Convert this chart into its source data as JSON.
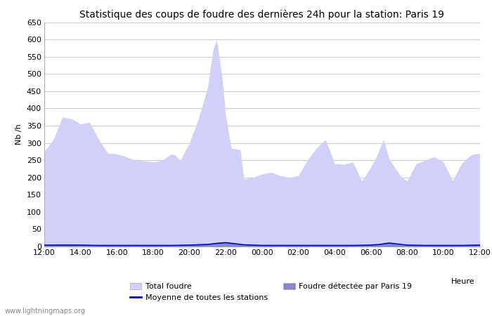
{
  "title": "Statistique des coups de foudre des dernières 24h pour la station: Paris 19",
  "ylabel": "Nb /h",
  "xlabel": "Heure",
  "watermark": "www.lightningmaps.org",
  "ylim": [
    0,
    650
  ],
  "yticks": [
    0,
    50,
    100,
    150,
    200,
    250,
    300,
    350,
    400,
    450,
    500,
    550,
    600,
    650
  ],
  "x_labels": [
    "12:00",
    "14:00",
    "16:00",
    "18:00",
    "20:00",
    "22:00",
    "00:00",
    "02:00",
    "04:00",
    "06:00",
    "08:00",
    "10:00",
    "12:00"
  ],
  "total_foudre_color": "#d0d0f8",
  "paris19_color": "#8888cc",
  "mean_line_color": "#0000cc",
  "background_color": "#ffffff",
  "grid_color": "#cccccc",
  "total_foudre_x": [
    0,
    0.5,
    1,
    1.5,
    2,
    2.5,
    3,
    3.5,
    4,
    4.5,
    5,
    5.5,
    6,
    6.5,
    7,
    7.2,
    7.5,
    8,
    8.5,
    9,
    9.3,
    9.5,
    9.8,
    10,
    10.3,
    10.8,
    11,
    11.5,
    12,
    12.5,
    13,
    13.5,
    14,
    14.5,
    15,
    15.5,
    16,
    16.5,
    17,
    17.5,
    18,
    18.3,
    18.7,
    19,
    19.3,
    19.7,
    20,
    20.5,
    21,
    21.5,
    22,
    22.5,
    23,
    23.5,
    24
  ],
  "total_foudre_y": [
    275,
    310,
    375,
    370,
    355,
    360,
    310,
    270,
    268,
    260,
    250,
    248,
    245,
    250,
    268,
    265,
    250,
    300,
    370,
    460,
    570,
    600,
    490,
    380,
    285,
    280,
    195,
    200,
    210,
    215,
    205,
    200,
    205,
    250,
    285,
    310,
    240,
    238,
    245,
    190,
    230,
    260,
    310,
    255,
    230,
    200,
    190,
    240,
    250,
    260,
    245,
    190,
    240,
    265,
    270
  ],
  "paris19_x": [
    0,
    0.5,
    1,
    2,
    3,
    4,
    5,
    6,
    7,
    8,
    9,
    9.5,
    10,
    10.5,
    11,
    12,
    13,
    14,
    15,
    16,
    17,
    18,
    18.5,
    19,
    19.5,
    20,
    21,
    22,
    23,
    23.5,
    24
  ],
  "paris19_y": [
    5,
    5,
    6,
    5,
    5,
    4,
    4,
    4,
    4,
    5,
    7,
    12,
    14,
    10,
    6,
    4,
    4,
    4,
    4,
    4,
    4,
    5,
    8,
    12,
    8,
    5,
    4,
    4,
    5,
    5,
    5
  ],
  "mean_line_x": [
    0,
    1,
    2,
    3,
    4,
    5,
    6,
    7,
    8,
    9,
    9.5,
    10,
    10.5,
    11,
    12,
    13,
    14,
    15,
    16,
    17,
    18,
    18.5,
    19,
    19.5,
    20,
    21,
    22,
    23,
    24
  ],
  "mean_line_y": [
    4,
    4,
    4,
    3,
    3,
    3,
    3,
    3,
    4,
    6,
    9,
    11,
    8,
    5,
    3,
    3,
    3,
    3,
    3,
    3,
    4,
    6,
    10,
    7,
    4,
    3,
    3,
    3,
    4
  ],
  "legend_total_label": "Total foudre",
  "legend_paris19_label": "Foudre détectée par Paris 19",
  "legend_mean_label": "Moyenne de toutes les stations",
  "title_fontsize": 10,
  "axis_fontsize": 8,
  "tick_fontsize": 8
}
